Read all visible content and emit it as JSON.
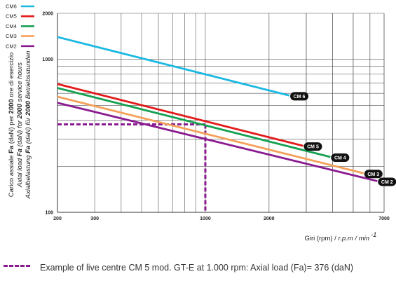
{
  "chart_data": {
    "type": "line",
    "x_scale": "log",
    "y_scale": "log",
    "xlim": [
      200,
      7000
    ],
    "ylim": [
      100,
      2000
    ],
    "x_ticks": [
      200,
      300,
      1000,
      2000,
      7000
    ],
    "x_tick_labels": [
      "200",
      "300",
      "1000",
      "2000",
      "7000"
    ],
    "y_ticks": [
      100,
      1000,
      2000
    ],
    "y_tick_labels": [
      "100",
      "1000",
      "2000"
    ],
    "xlabel": "Giri (rpm) / r.p.m / min",
    "xlabel_sup": "-1",
    "ylabel_lines": [
      {
        "a": "Carico assiale ",
        "b": "Fa",
        "c": " (daN) per ",
        "d": "2000",
        "e": " ore di esercizio"
      },
      {
        "a": "Axial load ",
        "b": "Fa",
        "c": " (daN) for ",
        "d": "2000",
        "e": " service hours"
      },
      {
        "a": "Axialbelastung ",
        "b": "Fa",
        "c": " (daN) für ",
        "d": "2000",
        "e": " Betriebsstunden"
      }
    ],
    "grid": true,
    "legend_position": "top-left",
    "series": [
      {
        "name": "CM6",
        "badge": "CM 6",
        "color": "#1ab8e3",
        "points": [
          [
            200,
            1400
          ],
          [
            2500,
            580
          ]
        ]
      },
      {
        "name": "CM5",
        "badge": "CM 5",
        "color": "#e21a1a",
        "points": [
          [
            200,
            690
          ],
          [
            2900,
            272
          ]
        ]
      },
      {
        "name": "CM4",
        "badge": "CM 4",
        "color": "#14a050",
        "points": [
          [
            200,
            650
          ],
          [
            3900,
            230
          ]
        ]
      },
      {
        "name": "CM3",
        "badge": "CM 3",
        "color": "#f5a05a",
        "points": [
          [
            200,
            570
          ],
          [
            5600,
            180
          ]
        ]
      },
      {
        "name": "CM2",
        "badge": "CM 2",
        "color": "#8a1a8f",
        "points": [
          [
            200,
            520
          ],
          [
            6500,
            160
          ]
        ]
      }
    ],
    "example": {
      "x": 1000,
      "y": 376,
      "color": "#8a1a8f"
    }
  },
  "caption": {
    "text": "Example of live centre CM 5 mod. GT-E at 1.000 rpm: Axial load (Fa)= 376 (daN)"
  }
}
